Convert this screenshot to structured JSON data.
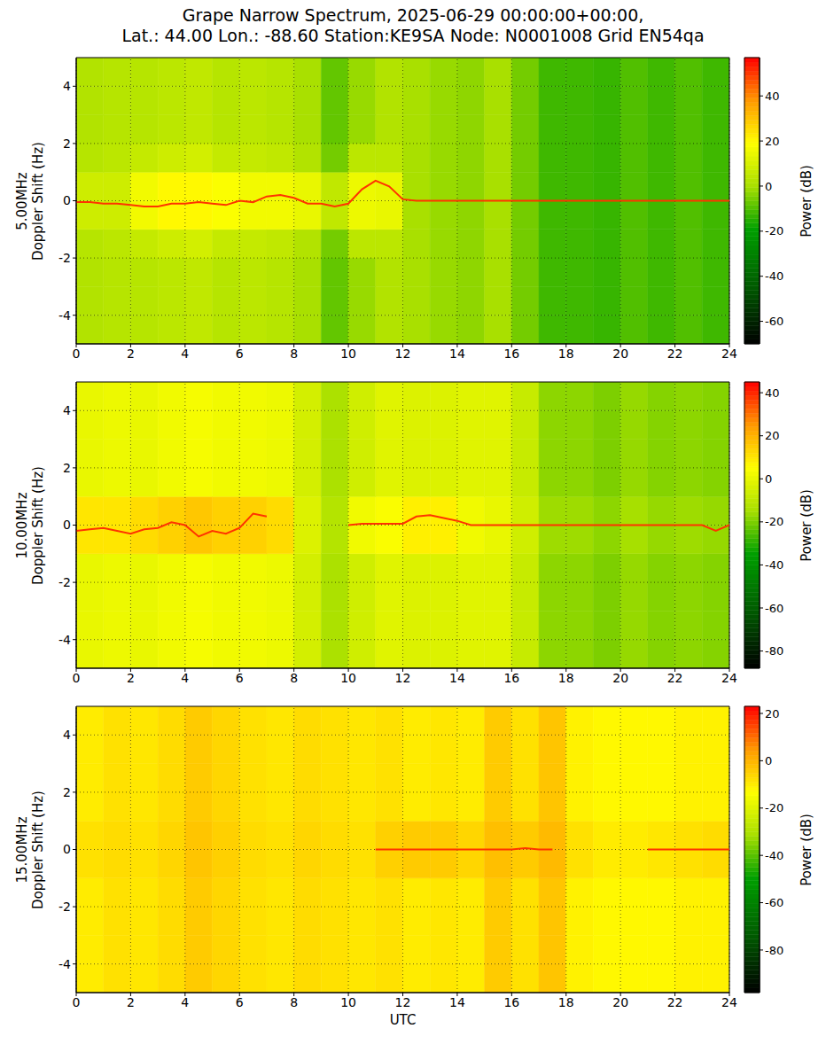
{
  "title": "Grape Narrow Spectrum, 2025-06-29 00:00:00+00:00,\nLat.: 44.00 Lon.: -88.60 Station:KE9SA Node: N0001008 Grid EN54qa",
  "chart_data": [
    {
      "type": "heatmap",
      "frequency": "5.00MHz",
      "ylabel": "Doppler Shift (Hz)",
      "xlim": [
        0,
        24
      ],
      "xticks": [
        0,
        2,
        4,
        6,
        8,
        10,
        12,
        14,
        16,
        18,
        20,
        22,
        24
      ],
      "ylim": [
        -5,
        5
      ],
      "yticks": [
        -4,
        -2,
        0,
        2,
        4
      ],
      "grid": true,
      "time_bins": [
        0,
        1,
        2,
        3,
        4,
        5,
        6,
        7,
        8,
        9,
        10,
        11,
        12,
        13,
        14,
        15,
        16,
        17,
        18,
        19,
        20,
        21,
        22,
        23,
        24
      ],
      "doppler_bins": [
        -5,
        -4,
        -3,
        -2,
        -1,
        0,
        1,
        2,
        3,
        4,
        5
      ],
      "cells": [
        [
          2,
          3,
          3,
          4,
          5,
          3,
          4,
          3,
          0,
          -8,
          -2,
          2,
          0,
          -2,
          -3,
          0,
          -6,
          -12,
          -12,
          -13,
          -10,
          -12,
          -10,
          -12
        ],
        [
          2,
          3,
          3,
          4,
          5,
          3,
          4,
          3,
          0,
          -8,
          -2,
          2,
          0,
          -2,
          -3,
          0,
          -6,
          -12,
          -12,
          -13,
          -10,
          -12,
          -10,
          -12
        ],
        [
          2,
          3,
          3,
          4,
          5,
          3,
          4,
          3,
          0,
          -8,
          -2,
          2,
          0,
          -2,
          -3,
          0,
          -6,
          -12,
          -12,
          -13,
          -10,
          -12,
          -10,
          -12
        ],
        [
          3,
          4,
          6,
          8,
          9,
          6,
          6,
          5,
          2,
          -6,
          4,
          4,
          0,
          -2,
          -3,
          0,
          -6,
          -12,
          -12,
          -13,
          -10,
          -12,
          -10,
          -12
        ],
        [
          8,
          8,
          16,
          20,
          20,
          18,
          16,
          16,
          14,
          5,
          15,
          14,
          0,
          -2,
          -3,
          0,
          -6,
          -12,
          -12,
          -13,
          -10,
          -12,
          -10,
          -12
        ],
        [
          8,
          8,
          16,
          20,
          20,
          18,
          16,
          16,
          14,
          5,
          15,
          14,
          0,
          -2,
          -3,
          0,
          -6,
          -12,
          -12,
          -13,
          -10,
          -12,
          -10,
          -12
        ],
        [
          3,
          4,
          6,
          8,
          9,
          6,
          6,
          5,
          2,
          -6,
          4,
          4,
          0,
          -2,
          -3,
          0,
          -6,
          -12,
          -12,
          -13,
          -10,
          -12,
          -10,
          -12
        ],
        [
          2,
          3,
          3,
          4,
          5,
          3,
          4,
          3,
          0,
          -8,
          -2,
          2,
          0,
          -2,
          -3,
          0,
          -6,
          -12,
          -12,
          -13,
          -10,
          -12,
          -10,
          -12
        ],
        [
          2,
          3,
          3,
          4,
          5,
          3,
          4,
          3,
          0,
          -8,
          -2,
          2,
          0,
          -2,
          -3,
          0,
          -6,
          -12,
          -12,
          -13,
          -10,
          -12,
          -10,
          -12
        ],
        [
          2,
          3,
          3,
          4,
          5,
          3,
          4,
          3,
          0,
          -8,
          -2,
          2,
          0,
          -2,
          -3,
          0,
          -6,
          -12,
          -12,
          -13,
          -10,
          -12,
          -10,
          -12
        ]
      ],
      "colorbar": {
        "label": "Power (dB)",
        "range": [
          -70,
          57
        ],
        "ticks": [
          -60,
          -40,
          -20,
          0,
          20,
          40
        ]
      },
      "trace": {
        "color": "#ff3300",
        "x": [
          0,
          0.5,
          1,
          1.5,
          2,
          2.5,
          3,
          3.5,
          4,
          4.5,
          5,
          5.5,
          6,
          6.5,
          7,
          7.5,
          8,
          8.5,
          9,
          9.5,
          10,
          10.5,
          11,
          11.5,
          12,
          12.5,
          13,
          13.5,
          14,
          14.5,
          15,
          15.5,
          16,
          16.5,
          17,
          17.5,
          18,
          18.5,
          19,
          19.5,
          20,
          20.5,
          21,
          21.5,
          22,
          22.5,
          23,
          23.5,
          24
        ],
        "y": [
          -0.05,
          -0.05,
          -0.1,
          -0.1,
          -0.15,
          -0.2,
          -0.2,
          -0.1,
          -0.1,
          -0.05,
          -0.1,
          -0.15,
          0,
          -0.05,
          0.15,
          0.2,
          0.1,
          -0.1,
          -0.1,
          -0.2,
          -0.1,
          0.4,
          0.7,
          0.5,
          0.05,
          0,
          0,
          0,
          0,
          0,
          0,
          0,
          0,
          0,
          0,
          0,
          0,
          0,
          0,
          0,
          0,
          0,
          0,
          0,
          0,
          0,
          0,
          0,
          0
        ]
      }
    },
    {
      "type": "heatmap",
      "frequency": "10.00MHz",
      "ylabel": "Doppler Shift (Hz)",
      "xlim": [
        0,
        24
      ],
      "xticks": [
        0,
        2,
        4,
        6,
        8,
        10,
        12,
        14,
        16,
        18,
        20,
        22,
        24
      ],
      "ylim": [
        -5,
        5
      ],
      "yticks": [
        -4,
        -2,
        0,
        2,
        4
      ],
      "grid": true,
      "time_bins": [
        0,
        1,
        2,
        3,
        4,
        5,
        6,
        7,
        8,
        9,
        10,
        11,
        12,
        13,
        14,
        15,
        16,
        17,
        18,
        19,
        20,
        21,
        22,
        23,
        24
      ],
      "doppler_bins": [
        -5,
        -4,
        -3,
        -2,
        -1,
        0,
        1,
        2,
        3,
        4,
        5
      ],
      "cells": [
        [
          0,
          1,
          0,
          2,
          3,
          2,
          2,
          1,
          -5,
          -14,
          -6,
          -2,
          -3,
          -3,
          -2,
          -2,
          -8,
          -18,
          -18,
          -20,
          -17,
          -19,
          -18,
          -19
        ],
        [
          0,
          1,
          0,
          2,
          3,
          2,
          2,
          1,
          -5,
          -14,
          -6,
          -2,
          -3,
          -3,
          -2,
          -2,
          -8,
          -18,
          -18,
          -20,
          -17,
          -19,
          -18,
          -19
        ],
        [
          0,
          1,
          0,
          2,
          3,
          2,
          2,
          1,
          -5,
          -14,
          -6,
          -2,
          -3,
          -3,
          -2,
          -2,
          -8,
          -18,
          -18,
          -20,
          -17,
          -19,
          -18,
          -19
        ],
        [
          0,
          1,
          0,
          2,
          3,
          2,
          2,
          1,
          -5,
          -14,
          -6,
          -2,
          -3,
          -3,
          -2,
          -2,
          -8,
          -18,
          -18,
          -20,
          -17,
          -19,
          -18,
          -19
        ],
        [
          10,
          10,
          12,
          14,
          16,
          14,
          14,
          12,
          -3,
          -12,
          2,
          4,
          8,
          8,
          2,
          0,
          -6,
          -16,
          -16,
          -18,
          -15,
          -17,
          -16,
          -17
        ],
        [
          10,
          10,
          12,
          14,
          16,
          14,
          14,
          12,
          -3,
          -12,
          2,
          4,
          8,
          8,
          2,
          0,
          -6,
          -16,
          -16,
          -18,
          -15,
          -17,
          -16,
          -17
        ],
        [
          0,
          1,
          0,
          2,
          3,
          2,
          2,
          1,
          -5,
          -14,
          -6,
          -2,
          -3,
          -3,
          -2,
          -2,
          -8,
          -18,
          -18,
          -20,
          -17,
          -19,
          -18,
          -19
        ],
        [
          0,
          1,
          0,
          2,
          3,
          2,
          2,
          1,
          -5,
          -14,
          -6,
          -2,
          -3,
          -3,
          -2,
          -2,
          -8,
          -18,
          -18,
          -20,
          -17,
          -19,
          -18,
          -19
        ],
        [
          0,
          1,
          0,
          2,
          3,
          2,
          2,
          1,
          -5,
          -14,
          -6,
          -2,
          -3,
          -3,
          -2,
          -2,
          -8,
          -18,
          -18,
          -20,
          -17,
          -19,
          -18,
          -19
        ],
        [
          0,
          1,
          0,
          2,
          3,
          2,
          2,
          1,
          -5,
          -14,
          -6,
          -2,
          -3,
          -3,
          -2,
          -2,
          -8,
          -18,
          -18,
          -20,
          -17,
          -19,
          -18,
          -19
        ]
      ],
      "colorbar": {
        "label": "Power (dB)",
        "range": [
          -88,
          45
        ],
        "ticks": [
          -80,
          -60,
          -40,
          -20,
          0,
          20,
          40
        ]
      },
      "trace": {
        "color": "#ff3300",
        "x": [
          0,
          0.5,
          1,
          1.5,
          2,
          2.5,
          3,
          3.5,
          4,
          4.5,
          5,
          5.5,
          6,
          6.5,
          7,
          7.5,
          8,
          8.5,
          9,
          9.5,
          10,
          10.5,
          11,
          11.5,
          12,
          12.5,
          13,
          13.5,
          14,
          14.5,
          15,
          15.5,
          16,
          16.5,
          17,
          17.5,
          18,
          18.5,
          19,
          19.5,
          20,
          20.5,
          21,
          21.5,
          22,
          22.5,
          23,
          23.5,
          24
        ],
        "y": [
          -0.2,
          -0.15,
          -0.1,
          -0.2,
          -0.3,
          -0.15,
          -0.1,
          0.1,
          0,
          -0.4,
          -0.2,
          -0.3,
          -0.1,
          0.4,
          0.3,
          null,
          null,
          null,
          null,
          null,
          0,
          0.05,
          0.05,
          0.05,
          0.05,
          0.3,
          0.35,
          0.25,
          0.15,
          0,
          0,
          0,
          0,
          0,
          0,
          0,
          0,
          0,
          0,
          0,
          0,
          0,
          0,
          0,
          0,
          0,
          0,
          -0.2,
          0
        ]
      }
    },
    {
      "type": "heatmap",
      "frequency": "15.00MHz",
      "ylabel": "Doppler Shift (Hz)",
      "xlabel": "UTC",
      "xlim": [
        0,
        24
      ],
      "xticks": [
        0,
        2,
        4,
        6,
        8,
        10,
        12,
        14,
        16,
        18,
        20,
        22,
        24
      ],
      "ylim": [
        -5,
        5
      ],
      "yticks": [
        -4,
        -2,
        0,
        2,
        4
      ],
      "grid": true,
      "time_bins": [
        0,
        1,
        2,
        3,
        4,
        5,
        6,
        7,
        8,
        9,
        10,
        11,
        12,
        13,
        14,
        15,
        16,
        17,
        18,
        19,
        20,
        21,
        22,
        23,
        24
      ],
      "doppler_bins": [
        -5,
        -4,
        -3,
        -2,
        -1,
        0,
        1,
        2,
        3,
        4,
        5
      ],
      "cells": [
        [
          -10,
          -8,
          -9,
          -7,
          -4,
          -6,
          -8,
          -9,
          -7,
          -8,
          -9,
          -8,
          -10,
          -9,
          -10,
          -4,
          -8,
          -3,
          -11,
          -12,
          -12,
          -12,
          -11,
          -11
        ],
        [
          -10,
          -8,
          -9,
          -7,
          -4,
          -6,
          -8,
          -9,
          -7,
          -8,
          -9,
          -8,
          -10,
          -9,
          -10,
          -4,
          -8,
          -3,
          -11,
          -12,
          -12,
          -12,
          -11,
          -11
        ],
        [
          -10,
          -8,
          -9,
          -7,
          -4,
          -6,
          -8,
          -9,
          -7,
          -8,
          -9,
          -8,
          -10,
          -9,
          -10,
          -4,
          -8,
          -3,
          -11,
          -12,
          -12,
          -12,
          -11,
          -11
        ],
        [
          -10,
          -8,
          -9,
          -7,
          -4,
          -6,
          -8,
          -9,
          -7,
          -8,
          -9,
          -8,
          -10,
          -9,
          -10,
          -4,
          -8,
          -3,
          -11,
          -12,
          -12,
          -12,
          -11,
          -11
        ],
        [
          -8,
          -7,
          -8,
          -6,
          -3,
          -5,
          -7,
          -8,
          -6,
          -7,
          -8,
          -5,
          -4,
          -4,
          -6,
          -2,
          -4,
          -1,
          -8,
          -10,
          -10,
          -9,
          -8,
          -7
        ],
        [
          -8,
          -7,
          -8,
          -6,
          -3,
          -5,
          -7,
          -8,
          -6,
          -7,
          -8,
          -5,
          -4,
          -4,
          -6,
          -2,
          -4,
          -1,
          -8,
          -10,
          -10,
          -9,
          -8,
          -7
        ],
        [
          -10,
          -8,
          -9,
          -7,
          -4,
          -6,
          -8,
          -9,
          -7,
          -8,
          -9,
          -8,
          -10,
          -9,
          -10,
          -4,
          -8,
          -3,
          -11,
          -12,
          -12,
          -12,
          -11,
          -11
        ],
        [
          -10,
          -8,
          -9,
          -7,
          -4,
          -6,
          -8,
          -9,
          -7,
          -8,
          -9,
          -8,
          -10,
          -9,
          -10,
          -4,
          -8,
          -3,
          -11,
          -12,
          -12,
          -12,
          -11,
          -11
        ],
        [
          -10,
          -8,
          -9,
          -7,
          -4,
          -6,
          -8,
          -9,
          -7,
          -8,
          -9,
          -8,
          -10,
          -9,
          -10,
          -4,
          -8,
          -3,
          -11,
          -12,
          -12,
          -12,
          -11,
          -11
        ],
        [
          -10,
          -8,
          -9,
          -7,
          -4,
          -6,
          -8,
          -9,
          -7,
          -8,
          -9,
          -8,
          -10,
          -9,
          -10,
          -4,
          -8,
          -3,
          -11,
          -12,
          -12,
          -12,
          -11,
          -11
        ]
      ],
      "colorbar": {
        "label": "Power (dB)",
        "range": [
          -98,
          23
        ],
        "ticks": [
          -80,
          -60,
          -40,
          -20,
          0,
          20
        ]
      },
      "trace": {
        "color": "#ff3300",
        "x": [
          0,
          0.5,
          1,
          1.5,
          2,
          2.5,
          3,
          3.5,
          4,
          4.5,
          5,
          5.5,
          6,
          6.5,
          7,
          7.5,
          8,
          8.5,
          9,
          9.5,
          10,
          10.5,
          11,
          11.5,
          12,
          12.5,
          13,
          13.5,
          14,
          14.5,
          15,
          15.5,
          16,
          16.5,
          17,
          17.5,
          18,
          18.5,
          19,
          19.5,
          20,
          20.5,
          21,
          21.5,
          22,
          22.5,
          23,
          23.5,
          24
        ],
        "y": [
          null,
          null,
          null,
          null,
          null,
          null,
          null,
          null,
          null,
          null,
          null,
          null,
          null,
          null,
          null,
          null,
          null,
          null,
          null,
          null,
          null,
          null,
          0,
          0,
          0,
          0,
          0,
          0,
          0,
          0,
          0,
          0,
          0,
          0.05,
          0,
          0,
          null,
          null,
          null,
          null,
          null,
          null,
          0,
          0,
          0,
          0,
          0,
          0,
          0
        ]
      }
    }
  ]
}
